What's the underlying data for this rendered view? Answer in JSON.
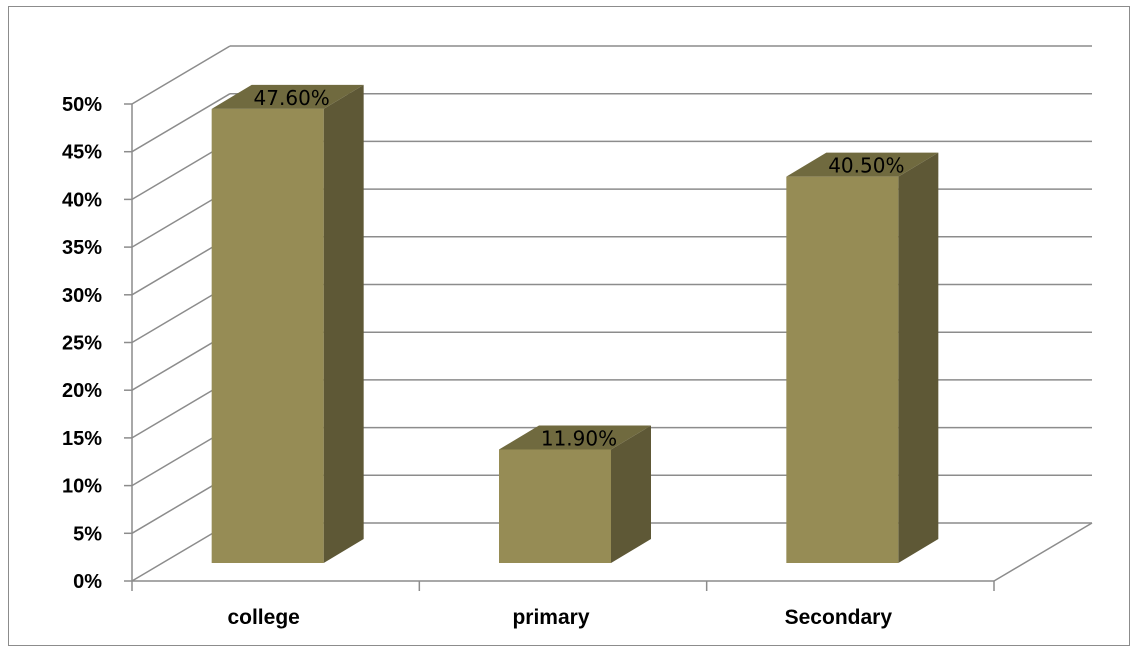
{
  "chart_data": {
    "type": "bar",
    "style": "3d-column",
    "categories": [
      "college",
      "primary",
      "Secondary"
    ],
    "values": [
      47.6,
      11.9,
      40.5
    ],
    "data_labels": [
      "47.60%",
      "11.90%",
      "40.50%"
    ],
    "ylim": [
      0,
      50
    ],
    "y_ticks": [
      "0%",
      "5%",
      "10%",
      "15%",
      "20%",
      "25%",
      "30%",
      "35%",
      "40%",
      "45%",
      "50%"
    ],
    "title": "",
    "xlabel": "",
    "ylabel": "",
    "grid": true,
    "legend": "none",
    "colors": {
      "bar_front": "#968c55",
      "bar_side": "#5e5836",
      "bar_top": "#706a3f",
      "grid": "#8c8c8c",
      "axis": "#8c8c8c"
    }
  }
}
